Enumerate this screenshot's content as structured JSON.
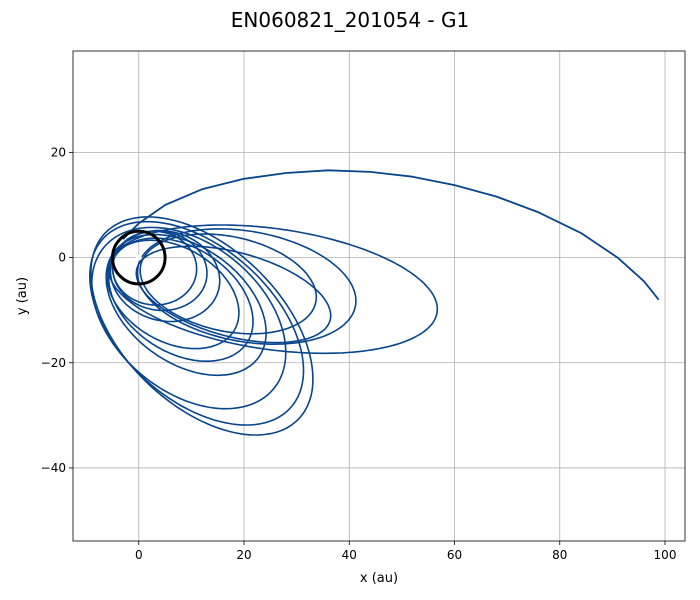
{
  "chart_data": {
    "type": "line",
    "title": "EN060821_201054 - G1",
    "xlabel": "x (au)",
    "ylabel": "y (au)",
    "xlim": [
      -12.5,
      103.8
    ],
    "ylim": [
      -53.9,
      39.3
    ],
    "xticks": [
      0,
      20,
      40,
      60,
      80,
      100
    ],
    "yticks": [
      -40,
      -20,
      0,
      20
    ],
    "xtick_labels": [
      "0",
      "20",
      "40",
      "60",
      "80",
      "100"
    ],
    "ytick_labels": [
      "−40",
      "−20",
      "0",
      "20"
    ],
    "grid": true,
    "series_color": "#08458c",
    "circle": {
      "center": [
        0,
        0
      ],
      "radius": 5,
      "color": "#000000"
    },
    "orbits": [
      {
        "cx": 25.5,
        "cy": -6.0,
        "rx": 31.5,
        "ry": 11.5,
        "rot": -8
      },
      {
        "cx": 20.5,
        "cy": -5.5,
        "rx": 21.0,
        "ry": 10.5,
        "rot": -10
      },
      {
        "cx": 17.0,
        "cy": -5.0,
        "rx": 17.0,
        "ry": 9.0,
        "rot": -12
      },
      {
        "cx": 18.0,
        "cy": -7.0,
        "rx": 19.0,
        "ry": 8.0,
        "rot": -15
      },
      {
        "cx": 9.5,
        "cy": -11.5,
        "rx": 21.0,
        "ry": 14.0,
        "rot": -40
      },
      {
        "cx": 11.0,
        "cy": -12.5,
        "rx": 24.0,
        "ry": 14.5,
        "rot": -42
      },
      {
        "cx": 12.0,
        "cy": -13.0,
        "rx": 25.5,
        "ry": 15.0,
        "rot": -44
      },
      {
        "cx": 6.5,
        "cy": -7.0,
        "rx": 13.5,
        "ry": 9.0,
        "rot": -30
      },
      {
        "cx": 8.0,
        "cy": -8.0,
        "rx": 15.0,
        "ry": 10.0,
        "rot": -33
      },
      {
        "cx": 9.0,
        "cy": -9.0,
        "rx": 17.0,
        "ry": 11.0,
        "rot": -36
      },
      {
        "cx": 5.0,
        "cy": -3.5,
        "rx": 10.5,
        "ry": 8.5,
        "rot": -15
      },
      {
        "cx": 4.0,
        "cy": -2.5,
        "rx": 9.0,
        "ry": 7.5,
        "rot": -10
      },
      {
        "cx": 3.0,
        "cy": -2.0,
        "rx": 8.0,
        "ry": 7.0,
        "rot": -5
      }
    ],
    "tail": {
      "x": [
        -3,
        0,
        5,
        12,
        20,
        28,
        36,
        44,
        52,
        60,
        68,
        76,
        84,
        91,
        96,
        98.8
      ],
      "y": [
        3.5,
        6.5,
        10.0,
        13.0,
        15.0,
        16.1,
        16.6,
        16.3,
        15.4,
        13.8,
        11.6,
        8.6,
        4.7,
        0.0,
        -4.5,
        -8.0
      ]
    }
  }
}
